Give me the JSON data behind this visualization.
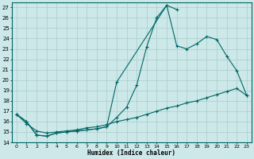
{
  "xlabel": "Humidex (Indice chaleur)",
  "bg_color": "#cce8e8",
  "grid_color": "#aacccc",
  "line_color": "#006666",
  "xlim": [
    -0.5,
    23.5
  ],
  "ylim": [
    14,
    27.5
  ],
  "xticks": [
    0,
    1,
    2,
    3,
    4,
    5,
    6,
    7,
    8,
    9,
    10,
    11,
    12,
    13,
    14,
    15,
    16,
    17,
    18,
    19,
    20,
    21,
    22,
    23
  ],
  "yticks": [
    14,
    15,
    16,
    17,
    18,
    19,
    20,
    21,
    22,
    23,
    24,
    25,
    26,
    27
  ],
  "line1_x": [
    0,
    1,
    2,
    3,
    4,
    5,
    6,
    7,
    8,
    9,
    10,
    11,
    12,
    13,
    14,
    15,
    16
  ],
  "line1_y": [
    16.7,
    16.0,
    14.7,
    14.6,
    14.9,
    15.0,
    15.1,
    15.2,
    15.3,
    15.5,
    16.4,
    17.4,
    19.5,
    23.2,
    26.0,
    27.2,
    26.8
  ],
  "line2_x": [
    0,
    1,
    2,
    3,
    4,
    5,
    6,
    7,
    8,
    9,
    10,
    15,
    16,
    17,
    18,
    19,
    20,
    21,
    22,
    23
  ],
  "line2_y": [
    16.7,
    16.0,
    14.7,
    14.6,
    14.9,
    15.0,
    15.1,
    15.2,
    15.3,
    15.5,
    19.8,
    27.2,
    23.3,
    23.0,
    23.5,
    24.2,
    23.9,
    22.3,
    20.9,
    18.5
  ],
  "line3_x": [
    0,
    1,
    2,
    3,
    4,
    5,
    6,
    7,
    8,
    9,
    10,
    11,
    12,
    13,
    14,
    15,
    16,
    17,
    18,
    19,
    20,
    21,
    22,
    23
  ],
  "line3_y": [
    16.7,
    15.8,
    15.1,
    14.9,
    15.0,
    15.1,
    15.2,
    15.4,
    15.5,
    15.7,
    16.0,
    16.2,
    16.4,
    16.7,
    17.0,
    17.3,
    17.5,
    17.8,
    18.0,
    18.3,
    18.6,
    18.9,
    19.2,
    18.5
  ]
}
